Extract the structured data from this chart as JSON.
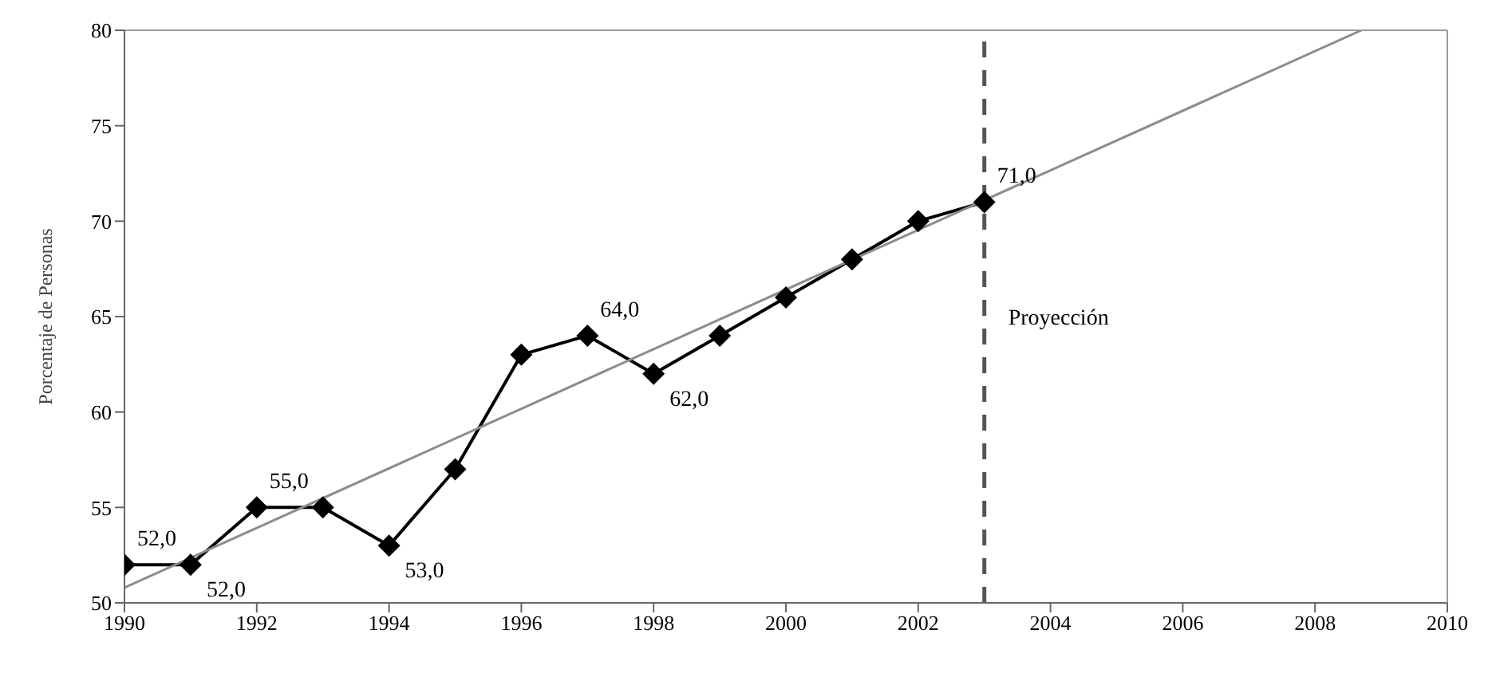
{
  "chart_data": {
    "type": "line",
    "ylabel": "Porcentaje de Personas",
    "x": [
      1990,
      1991,
      1992,
      1993,
      1994,
      1995,
      1996,
      1997,
      1998,
      1999,
      2000,
      2001,
      2002,
      2003
    ],
    "series": [
      {
        "color": "#000000",
        "marker": "diamond",
        "values": [
          52,
          52,
          55,
          55,
          53,
          57,
          63,
          64,
          62,
          64,
          66,
          68,
          70,
          71
        ],
        "value_labels": [
          "52,0",
          "52,0",
          "55,0",
          null,
          "53,0",
          null,
          null,
          "64,0",
          "62,0",
          null,
          null,
          null,
          null,
          "71,0"
        ]
      },
      {
        "type": "line",
        "color": "#8c8c8c",
        "marker": "none",
        "x": [
          1990,
          2008.7
        ],
        "values": [
          50.8,
          80
        ]
      }
    ],
    "xlim": [
      1990,
      2010
    ],
    "xticks": [
      1990,
      1992,
      1994,
      1996,
      1998,
      2000,
      2002,
      2004,
      2006,
      2008,
      2010
    ],
    "ylim": [
      50,
      80
    ],
    "yticks": [
      50,
      55,
      60,
      65,
      70,
      75,
      80
    ],
    "ref_lines": [
      {
        "axis": "x",
        "value": 2003,
        "label": "Proyección",
        "color": "#555555",
        "line_style": "dashed"
      }
    ],
    "grid": false
  }
}
